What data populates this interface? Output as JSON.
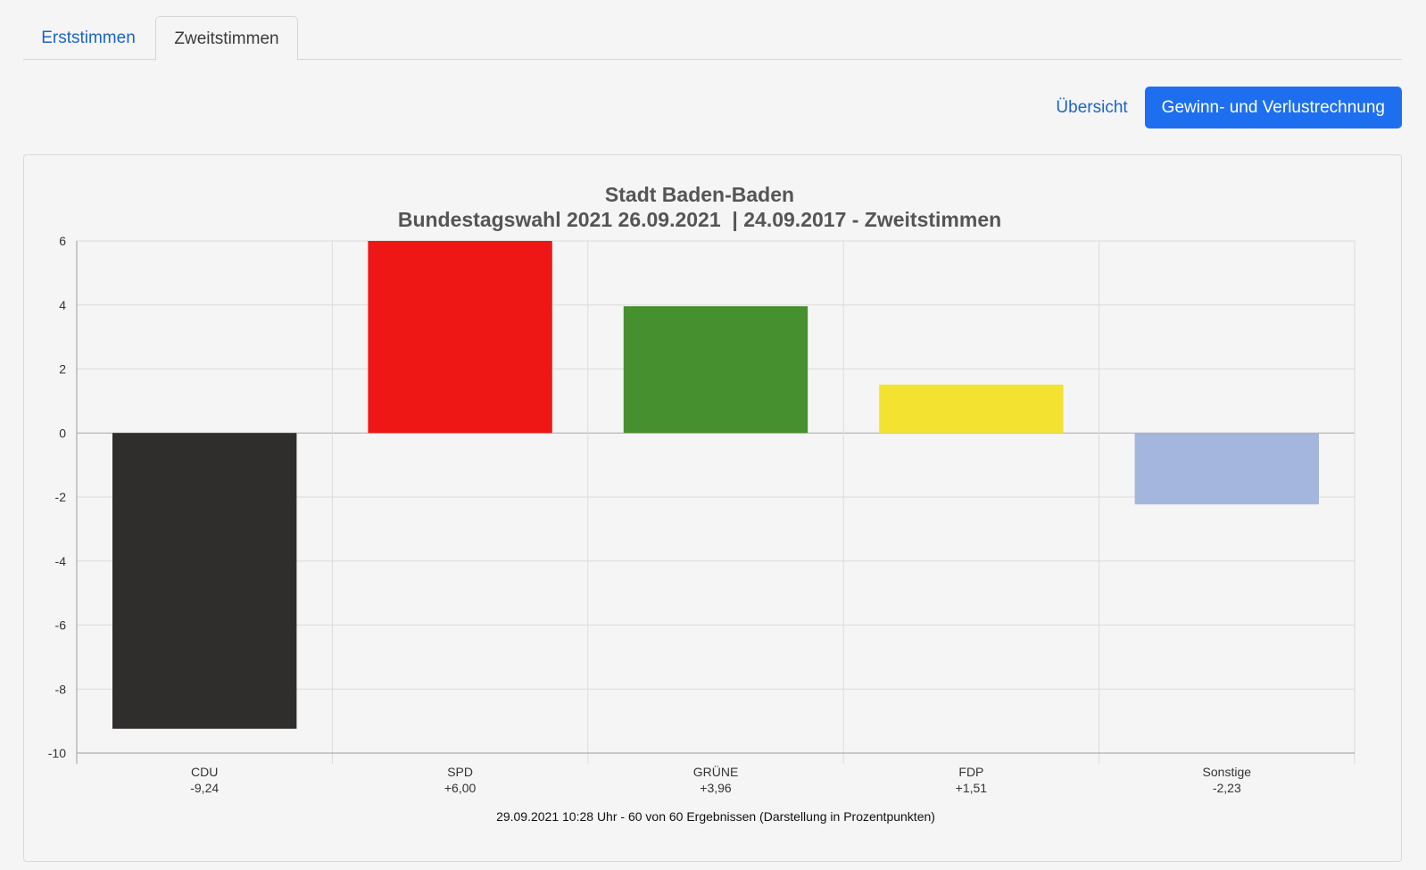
{
  "tabs": [
    {
      "label": "Erststimmen",
      "active": false
    },
    {
      "label": "Zweitstimmen",
      "active": true
    }
  ],
  "actions": {
    "overview_label": "Übersicht",
    "primary_label": "Gewinn- und Verlustrechnung"
  },
  "colors": {
    "link": "#1c64c8",
    "primary_button": "#1e6ff0"
  },
  "chart_data": {
    "type": "bar",
    "title": "Stadt Baden-Baden",
    "subtitle": "Bundestagswahl 2021 26.09.2021  | 24.09.2017 - Zweitstimmen",
    "categories": [
      "CDU",
      "SPD",
      "GRÜNE",
      "FDP",
      "Sonstige"
    ],
    "value_labels": [
      "-9,24",
      "+6,00",
      "+3,96",
      "+1,51",
      "-2,23"
    ],
    "values": [
      -9.24,
      6.0,
      3.96,
      1.51,
      -2.23
    ],
    "colors": [
      "#2f2e2d",
      "#ef1616",
      "#47902f",
      "#f3e22f",
      "#a4b6dd"
    ],
    "ylim": [
      -10,
      6
    ],
    "yticks": [
      6,
      4,
      2,
      0,
      -2,
      -4,
      -6,
      -8,
      -10
    ],
    "grid": true,
    "footer": "29.09.2021 10:28 Uhr - 60 von 60 Ergebnissen (Darstellung in Prozentpunkten)"
  }
}
